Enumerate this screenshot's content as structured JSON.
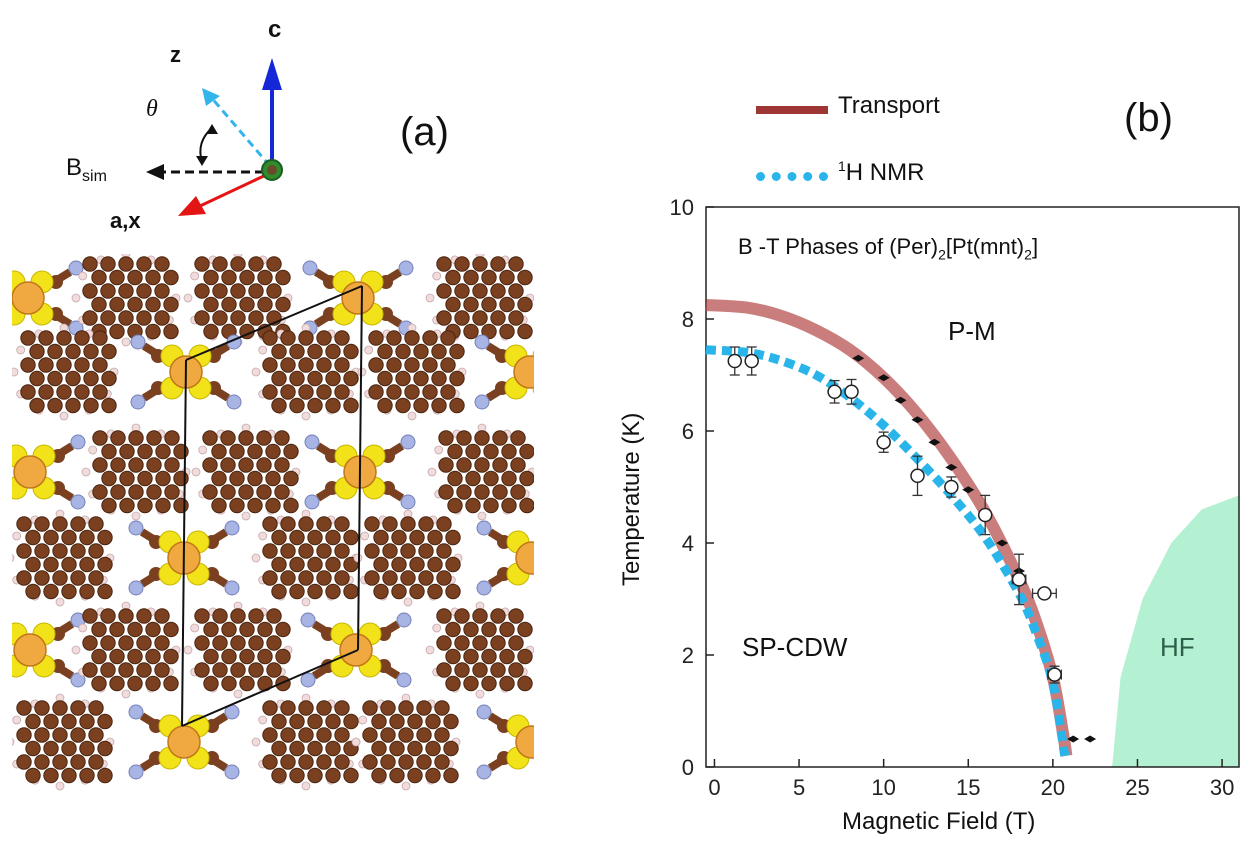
{
  "panel_a": {
    "label": "(a)",
    "axes": {
      "c": "c",
      "z": "z",
      "theta": "θ",
      "b_sim_main": "B",
      "b_sim_sub": "sim",
      "ax": "a,x"
    }
  },
  "panel_b": {
    "label": "(b)"
  },
  "chart_data": {
    "type": "scatter",
    "title_main": "B -T Phases of (Per)",
    "title_sub1": "2",
    "title_mid": "[Pt(mnt)",
    "title_sub2": "2",
    "title_end": "]",
    "xlabel": "Magnetic Field (T)",
    "ylabel": "Temperature (K)",
    "xlim": [
      -0.5,
      31
    ],
    "ylim": [
      0,
      10
    ],
    "xticks": [
      0,
      5,
      10,
      15,
      20,
      25,
      30
    ],
    "yticks": [
      0,
      2,
      4,
      6,
      8,
      10
    ],
    "legend": {
      "transport": "Transport",
      "nmr_sup": "1",
      "nmr": "H NMR"
    },
    "regions": {
      "pm": "P-M",
      "sp_cdw": "SP-CDW",
      "hf": "HF"
    },
    "colors": {
      "transport": "#b44646",
      "nmr": "#29b5ea",
      "hf": "#b4f0d2"
    },
    "transport_curve": [
      [
        -0.5,
        8.25
      ],
      [
        2,
        8.2
      ],
      [
        4,
        8.05
      ],
      [
        6,
        7.8
      ],
      [
        8,
        7.45
      ],
      [
        10,
        6.95
      ],
      [
        12,
        6.3
      ],
      [
        14,
        5.5
      ],
      [
        16,
        4.55
      ],
      [
        18,
        3.35
      ],
      [
        19,
        2.6
      ],
      [
        20,
        1.6
      ],
      [
        20.6,
        0.6
      ],
      [
        20.8,
        0.2
      ]
    ],
    "nmr_curve": [
      [
        -0.5,
        7.45
      ],
      [
        2,
        7.4
      ],
      [
        4,
        7.25
      ],
      [
        6,
        7.0
      ],
      [
        8,
        6.6
      ],
      [
        10,
        6.1
      ],
      [
        12,
        5.5
      ],
      [
        14,
        4.85
      ],
      [
        16,
        4.1
      ],
      [
        18,
        3.1
      ],
      [
        19,
        2.4
      ],
      [
        20,
        1.5
      ],
      [
        20.7,
        0.2
      ]
    ],
    "nmr_points": [
      {
        "x": 1.2,
        "y": 7.25,
        "yerr": 0.25,
        "xerr": 0
      },
      {
        "x": 2.2,
        "y": 7.25,
        "yerr": 0.25,
        "xerr": 0
      },
      {
        "x": 7.1,
        "y": 6.7,
        "yerr": 0.2,
        "xerr": 0
      },
      {
        "x": 8.1,
        "y": 6.7,
        "yerr": 0.22,
        "xerr": 0
      },
      {
        "x": 10.0,
        "y": 5.8,
        "yerr": 0.18,
        "xerr": 0
      },
      {
        "x": 12.0,
        "y": 5.2,
        "yerr": 0.35,
        "xerr": 0
      },
      {
        "x": 14.0,
        "y": 5.0,
        "yerr": 0.18,
        "xerr": 0
      },
      {
        "x": 16.0,
        "y": 4.5,
        "yerr": 0.35,
        "xerr": 0
      },
      {
        "x": 18.0,
        "y": 3.35,
        "yerr": 0.45,
        "xerr": 0.4
      },
      {
        "x": 19.5,
        "y": 3.1,
        "yerr": 0,
        "xerr": 0.7
      },
      {
        "x": 20.1,
        "y": 1.65,
        "yerr": 0.15,
        "xerr": 0.4
      }
    ],
    "transport_points": [
      [
        8.5,
        7.3
      ],
      [
        10.0,
        6.95
      ],
      [
        11.0,
        6.55
      ],
      [
        12.0,
        6.2
      ],
      [
        13.0,
        5.8
      ],
      [
        14.0,
        5.35
      ],
      [
        15.0,
        4.95
      ],
      [
        16.0,
        4.45
      ],
      [
        17.0,
        4.0
      ],
      [
        18.0,
        3.5
      ],
      [
        21.2,
        0.5
      ],
      [
        22.2,
        0.5
      ]
    ],
    "hf_region": [
      [
        23.5,
        0
      ],
      [
        24.0,
        1.6
      ],
      [
        25.3,
        3.0
      ],
      [
        27.0,
        4.0
      ],
      [
        28.8,
        4.6
      ],
      [
        31.0,
        4.85
      ],
      [
        31.0,
        0
      ]
    ]
  }
}
